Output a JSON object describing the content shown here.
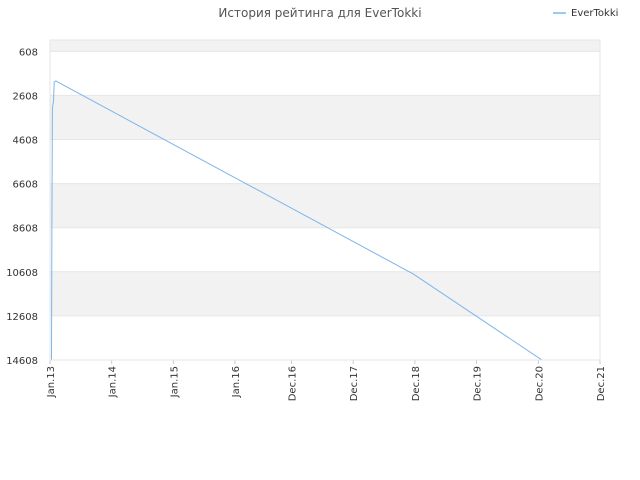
{
  "chart_data": {
    "type": "line",
    "title": "История рейтинга для EverTokki",
    "xlabel": "",
    "ylabel": "",
    "y_axis": {
      "reversed": true,
      "range": [
        14608,
        94
      ],
      "ticks": [
        608,
        2608,
        4608,
        6608,
        8608,
        10608,
        12608,
        14608
      ]
    },
    "x_axis": {
      "range": [
        "2013-01-01",
        "2021-12-01"
      ],
      "ticks": [
        "Jan.13",
        "Jan.14",
        "Jan.15",
        "Jan.16",
        "Dec.16",
        "Dec.17",
        "Dec.18",
        "Dec.19",
        "Dec.20",
        "Dec.21"
      ],
      "tick_dates": [
        "2013-01-01",
        "2014-01-01",
        "2015-01-01",
        "2016-01-01",
        "2016-12-01",
        "2017-12-01",
        "2018-12-01",
        "2019-12-01",
        "2020-12-01",
        "2021-12-01"
      ]
    },
    "grid": true,
    "legend": "top-right",
    "series": [
      {
        "name": "EverTokki",
        "color": "#7cb5ec",
        "x": [
          "2013-01-10",
          "2013-01-12",
          "2013-01-15",
          "2013-01-18",
          "2013-01-22",
          "2013-01-26",
          "2013-02-05",
          "2013-02-15",
          "2018-11-20",
          "2020-12-20"
        ],
        "y": [
          14608,
          8500,
          3200,
          3000,
          2900,
          2000,
          1950,
          2000,
          10700,
          14600
        ]
      }
    ]
  }
}
